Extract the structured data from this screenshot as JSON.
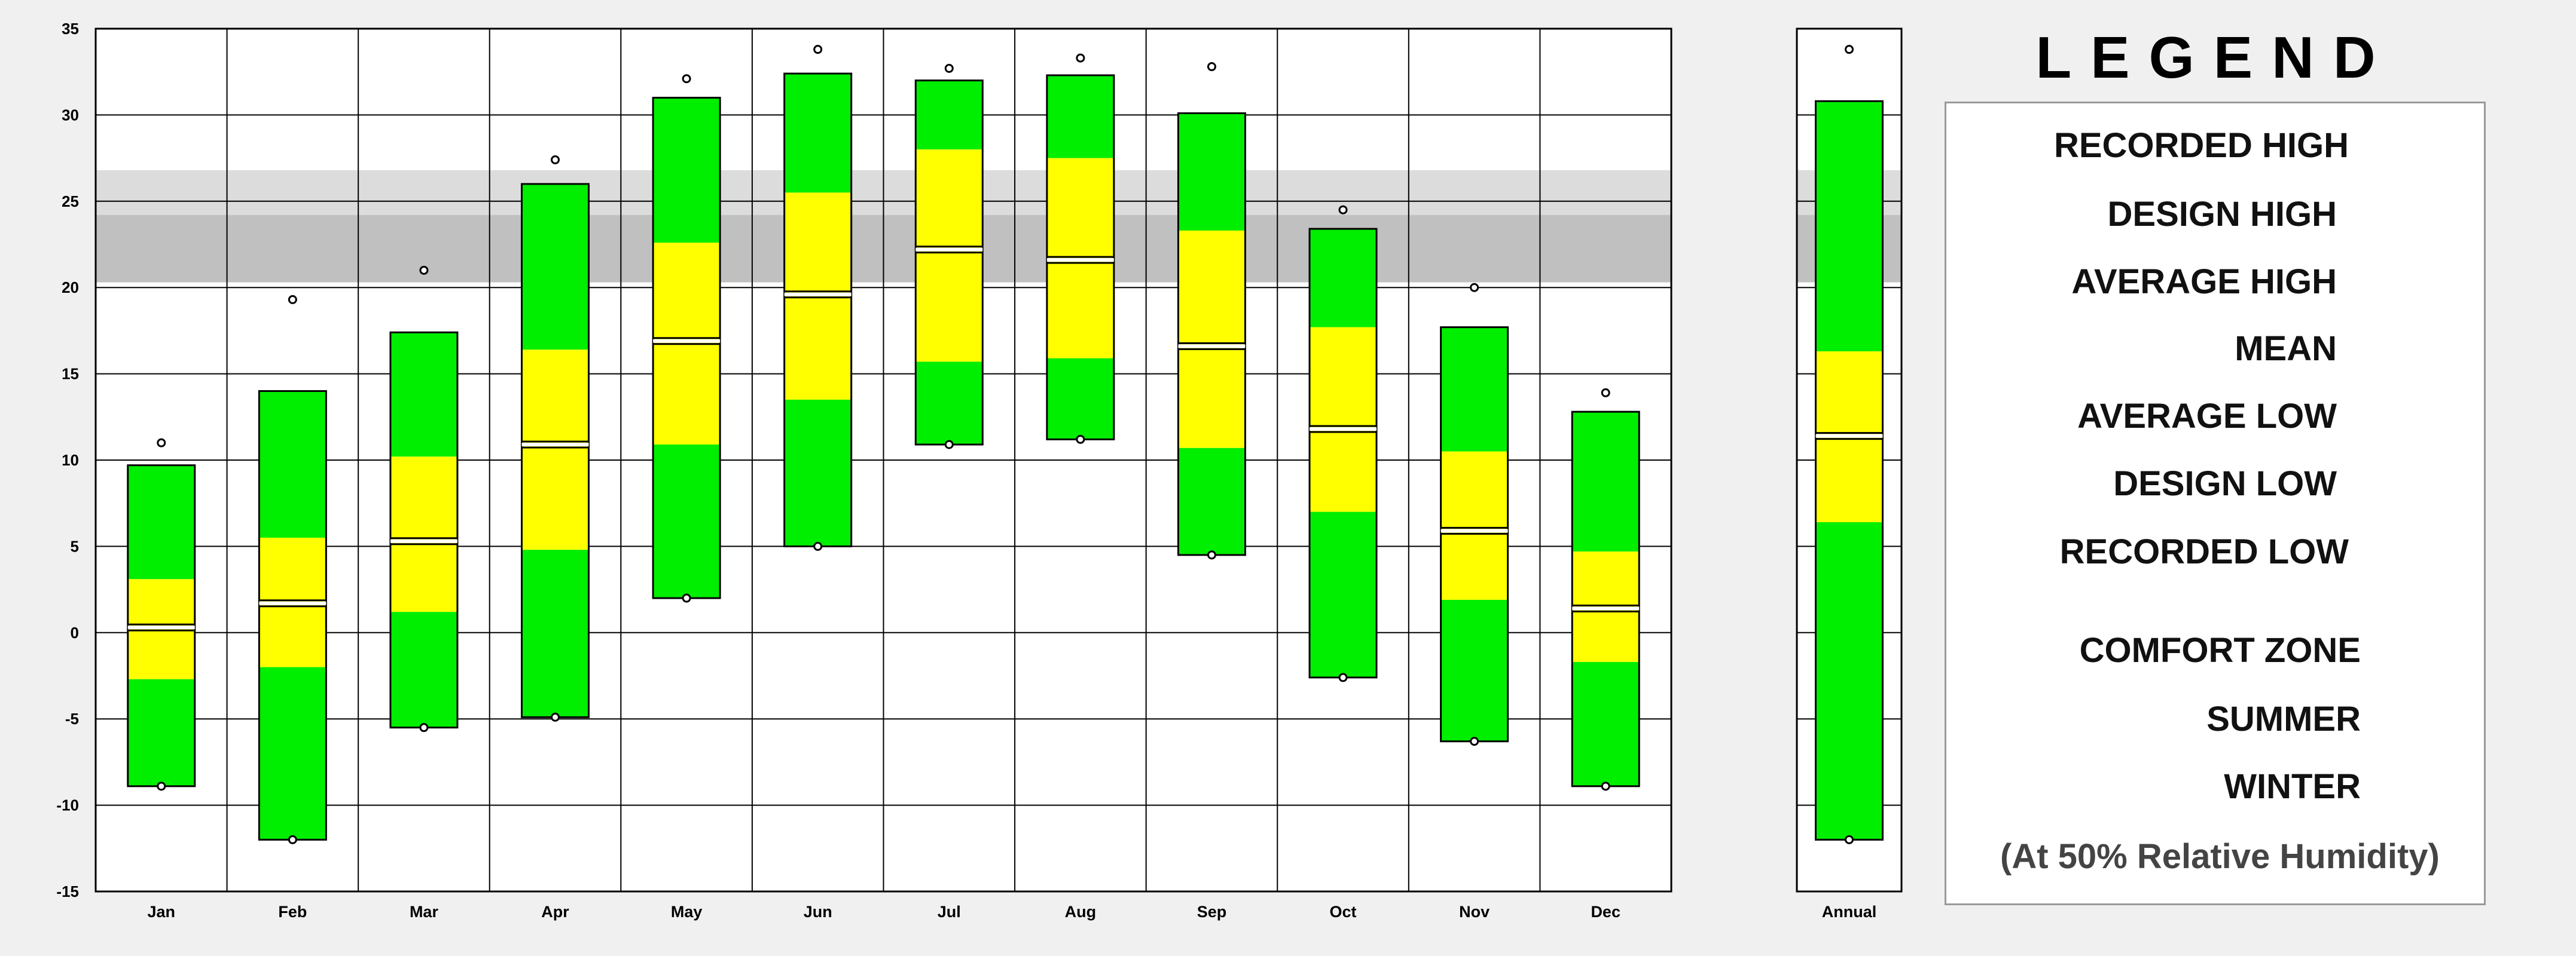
{
  "chart_data": {
    "type": "box",
    "title": "",
    "xlabel": "",
    "ylabel": "",
    "ylim": [
      -15,
      35
    ],
    "yticks": [
      -15,
      -10,
      -5,
      0,
      5,
      10,
      15,
      20,
      25,
      30,
      35
    ],
    "grid": true,
    "comfort_zone": {
      "summer": [
        20.3,
        26.8
      ],
      "winter": [
        20.3,
        24.2
      ]
    },
    "categories": [
      "Jan",
      "Feb",
      "Mar",
      "Apr",
      "May",
      "Jun",
      "Jul",
      "Aug",
      "Sep",
      "Oct",
      "Nov",
      "Dec",
      "Annual"
    ],
    "recorded_high": [
      11.0,
      19.3,
      21.0,
      27.4,
      32.1,
      33.8,
      32.7,
      33.3,
      32.8,
      24.5,
      20.0,
      13.9,
      33.8
    ],
    "design_high": [
      9.7,
      14.0,
      17.4,
      26.0,
      31.0,
      32.4,
      32.0,
      32.3,
      30.1,
      23.4,
      17.7,
      12.8,
      30.8
    ],
    "average_high": [
      3.1,
      5.5,
      10.2,
      16.4,
      22.6,
      25.5,
      28.0,
      27.5,
      23.3,
      17.7,
      10.5,
      4.7,
      16.3
    ],
    "mean": [
      0.3,
      1.7,
      5.3,
      10.9,
      16.9,
      19.6,
      22.2,
      21.6,
      16.6,
      11.8,
      5.9,
      1.4,
      11.4
    ],
    "average_low": [
      -2.7,
      -2.0,
      1.2,
      4.8,
      10.9,
      13.5,
      15.7,
      15.9,
      10.7,
      7.0,
      1.9,
      -1.7,
      6.4
    ],
    "design_low": [
      -8.9,
      -12.0,
      -5.5,
      -4.9,
      2.0,
      5.0,
      10.9,
      11.2,
      4.5,
      -2.6,
      -6.3,
      -8.9,
      -12.0
    ],
    "recorded_low": [
      -8.9,
      -12.0,
      -5.5,
      -4.9,
      2.0,
      5.0,
      10.9,
      11.2,
      4.5,
      -2.6,
      -6.3,
      -8.9,
      -12.0
    ]
  },
  "legend": {
    "title": "LEGEND",
    "recorded_high": "RECORDED HIGH",
    "design_high": "DESIGN HIGH",
    "average_high": "AVERAGE HIGH",
    "mean": "MEAN",
    "average_low": "AVERAGE LOW",
    "design_low": "DESIGN LOW",
    "recorded_low": "RECORDED LOW",
    "comfort_zone": "COMFORT ZONE",
    "summer": "SUMMER",
    "winter": "WINTER",
    "humidity_note": "(At 50% Relative Humidity)"
  },
  "colors": {
    "green": "#00ee00",
    "yellow": "#ffff00",
    "summer_zone": "#dcdcdc",
    "winter_zone": "#c0c0c0",
    "grid": "#000000",
    "background": "#f0f0f0"
  }
}
